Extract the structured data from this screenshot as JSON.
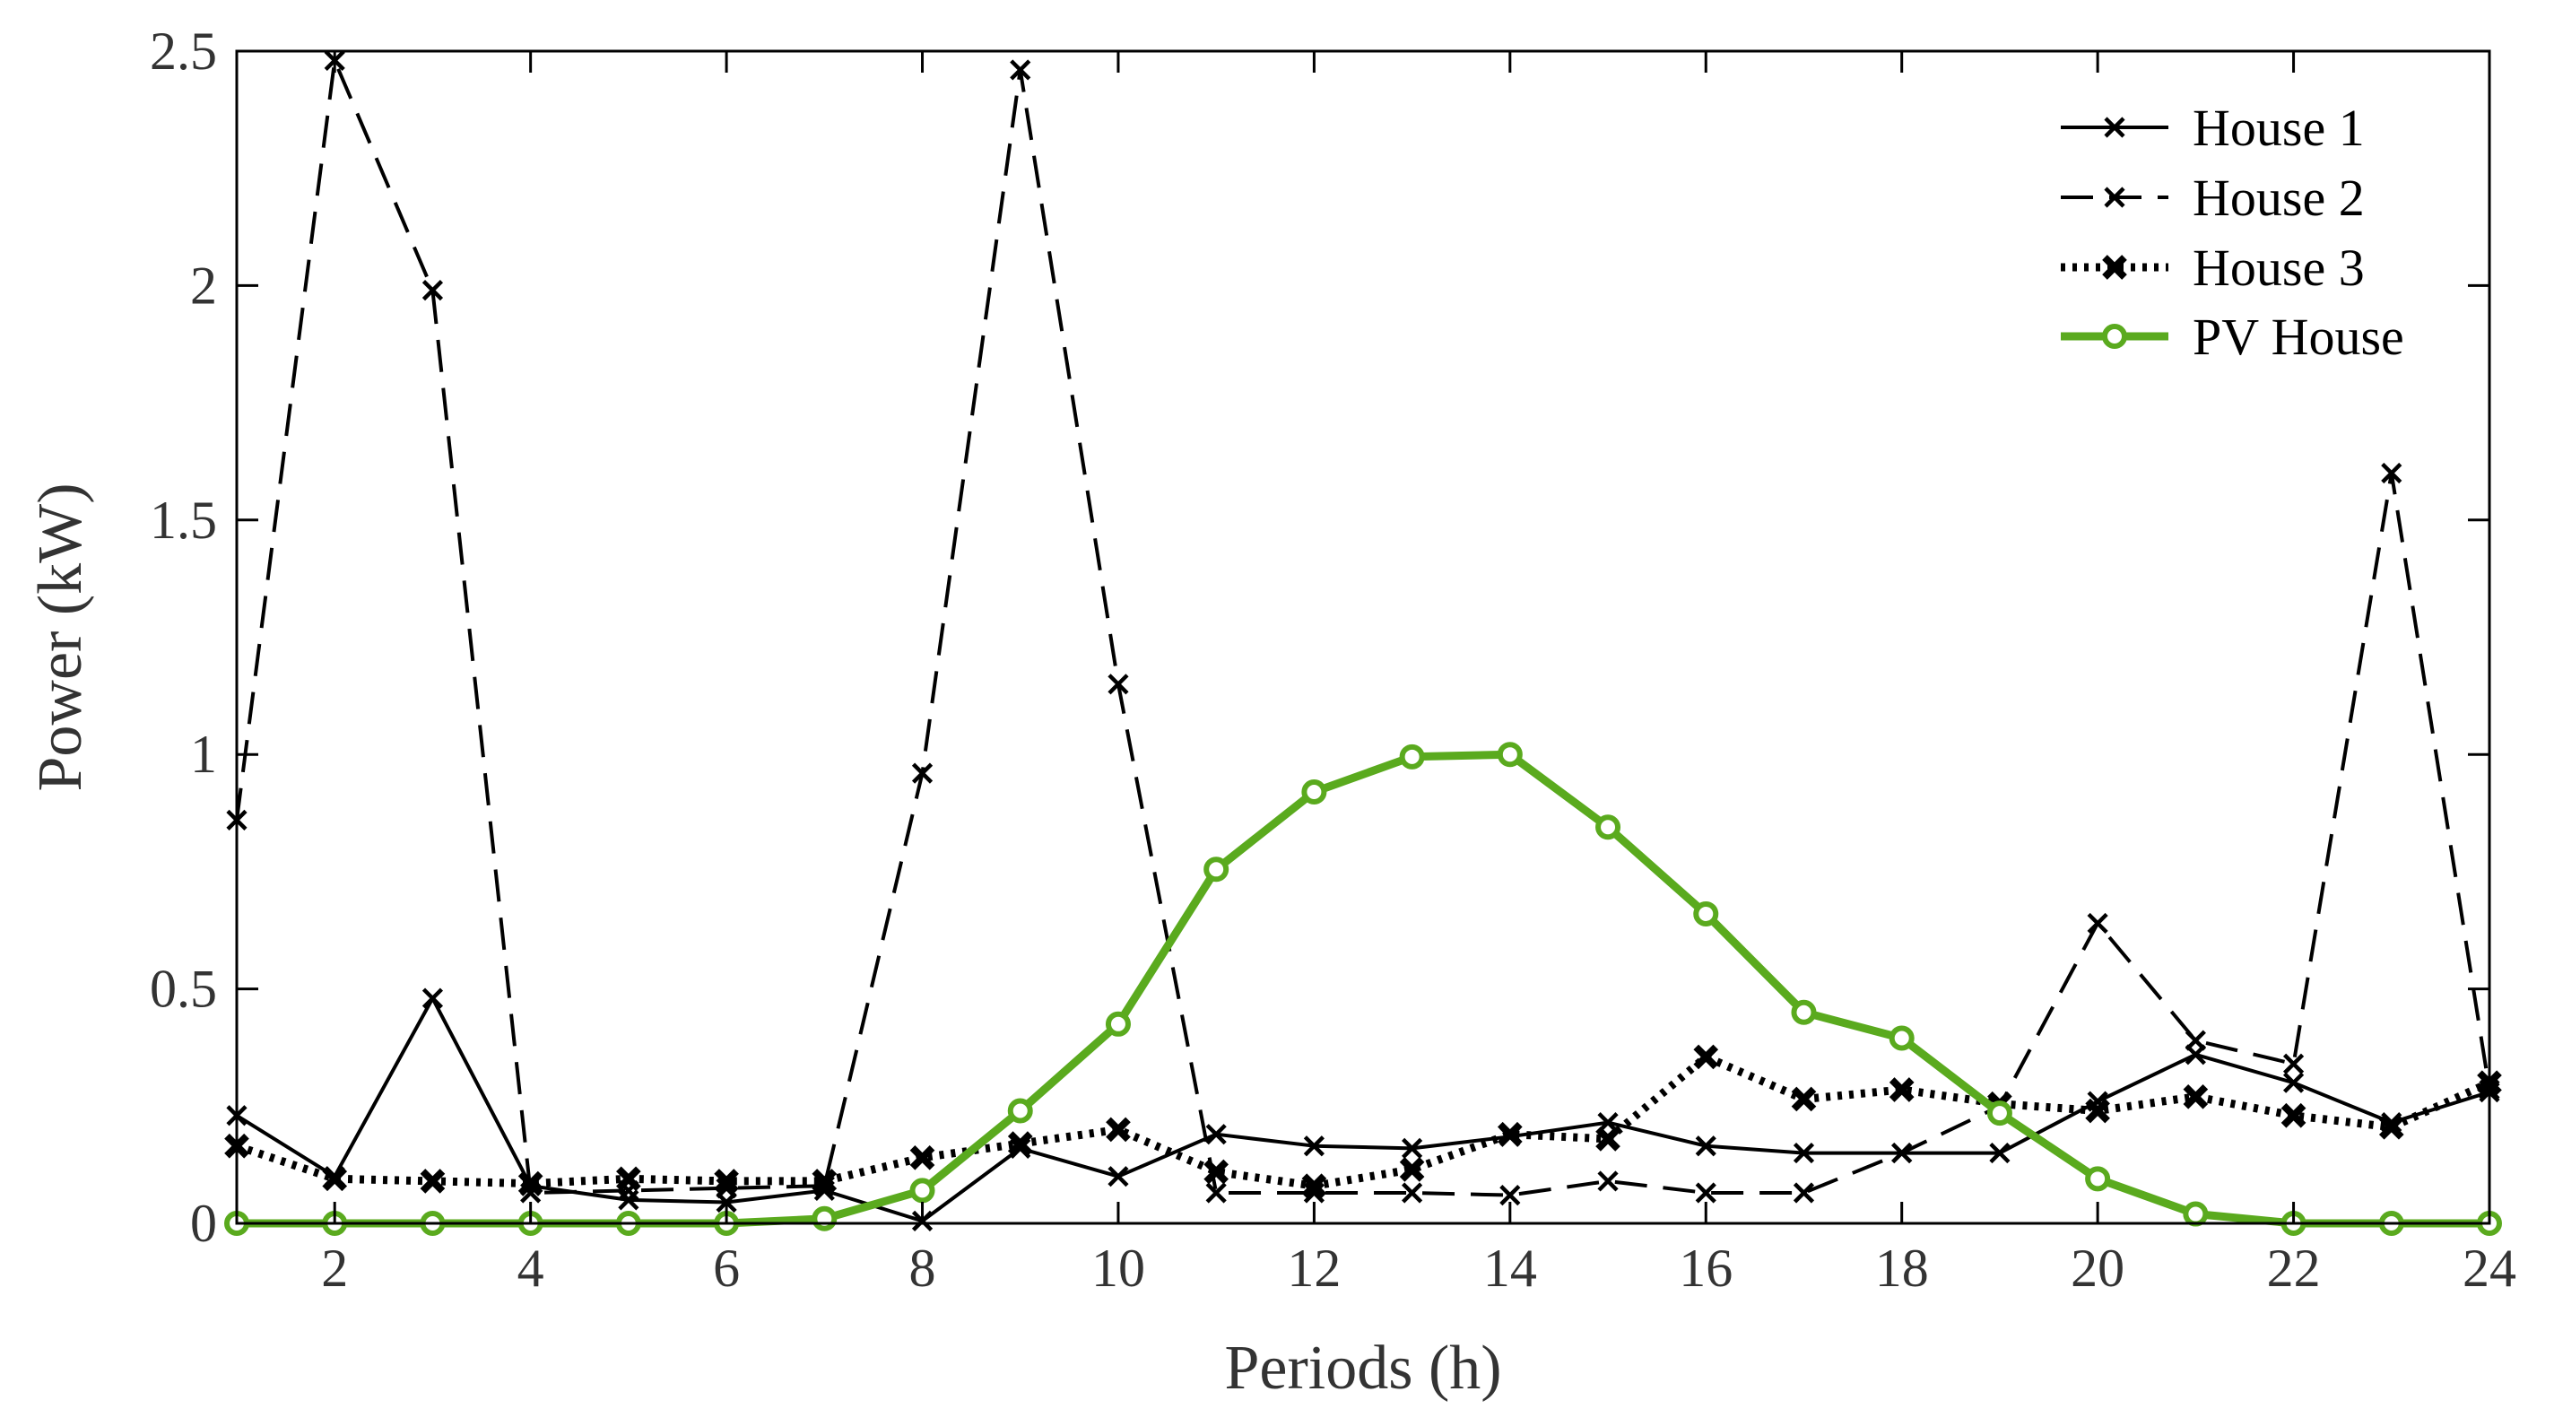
{
  "chart_data": {
    "type": "line",
    "title": "",
    "xlabel": "Periods (h)",
    "ylabel": "Power (kW)",
    "xlim": [
      1,
      24
    ],
    "ylim": [
      0,
      2.5
    ],
    "xticks": [
      2,
      4,
      6,
      8,
      10,
      12,
      14,
      16,
      18,
      20,
      22,
      24
    ],
    "yticks": [
      0,
      0.5,
      1,
      1.5,
      2,
      2.5
    ],
    "xtick_labels": [
      "2",
      "4",
      "6",
      "8",
      "10",
      "12",
      "14",
      "16",
      "18",
      "20",
      "22",
      "24"
    ],
    "ytick_labels": [
      "0",
      "0.5",
      "1",
      "1.5",
      "2",
      "2.5"
    ],
    "legend_position": "top-right",
    "x": [
      1,
      2,
      3,
      4,
      5,
      6,
      7,
      8,
      9,
      10,
      11,
      12,
      13,
      14,
      15,
      16,
      17,
      18,
      19,
      20,
      21,
      22,
      23,
      24
    ],
    "series": [
      {
        "name": "House 1",
        "style": "solid",
        "marker": "x",
        "color": "#000000",
        "values": [
          0.23,
          0.1,
          0.48,
          0.08,
          0.05,
          0.045,
          0.07,
          0.005,
          0.16,
          0.1,
          0.19,
          0.165,
          0.16,
          0.185,
          0.215,
          0.165,
          0.15,
          0.15,
          0.15,
          0.26,
          0.36,
          0.3,
          0.215,
          0.28
        ]
      },
      {
        "name": "House 2",
        "style": "dashed",
        "marker": "x",
        "color": "#000000",
        "values": [
          0.86,
          2.48,
          1.99,
          0.065,
          0.07,
          0.075,
          0.08,
          0.96,
          2.46,
          1.15,
          0.065,
          0.065,
          0.065,
          0.06,
          0.09,
          0.065,
          0.065,
          0.15,
          0.25,
          0.64,
          0.39,
          0.34,
          1.6,
          0.285
        ]
      },
      {
        "name": "House 3",
        "style": "dotted",
        "marker": "x-bold",
        "color": "#000000",
        "values": [
          0.165,
          0.095,
          0.09,
          0.085,
          0.095,
          0.09,
          0.09,
          0.14,
          0.17,
          0.2,
          0.11,
          0.08,
          0.115,
          0.19,
          0.18,
          0.355,
          0.265,
          0.285,
          0.255,
          0.24,
          0.27,
          0.23,
          0.205,
          0.3
        ]
      },
      {
        "name": "PV House",
        "style": "solid",
        "marker": "o",
        "color": "#5aaa1e",
        "values": [
          0,
          0,
          0,
          0,
          0,
          0,
          0.01,
          0.07,
          0.24,
          0.425,
          0.755,
          0.92,
          0.995,
          1.0,
          0.845,
          0.66,
          0.45,
          0.395,
          0.235,
          0.095,
          0.02,
          0,
          0,
          0
        ]
      }
    ]
  }
}
